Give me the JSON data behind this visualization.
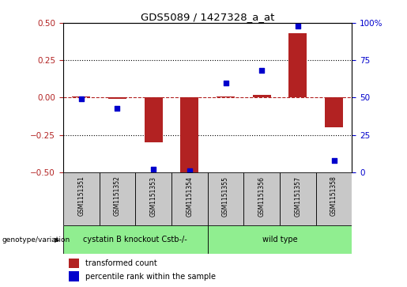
{
  "title": "GDS5089 / 1427328_a_at",
  "samples": [
    "GSM1151351",
    "GSM1151352",
    "GSM1151353",
    "GSM1151354",
    "GSM1151355",
    "GSM1151356",
    "GSM1151357",
    "GSM1151358"
  ],
  "transformed_count": [
    0.01,
    -0.01,
    -0.3,
    -0.5,
    0.01,
    0.02,
    0.43,
    -0.2
  ],
  "percentile_rank": [
    49,
    43,
    2,
    1,
    60,
    68,
    98,
    8
  ],
  "groups": [
    {
      "label": "cystatin B knockout Cstb-/-",
      "start": 0,
      "end": 3,
      "color": "#90EE90"
    },
    {
      "label": "wild type",
      "start": 4,
      "end": 7,
      "color": "#90EE90"
    }
  ],
  "group_row_label": "genotype/variation",
  "bar_color": "#B22222",
  "dot_color": "#0000CC",
  "bg_color": "#FFFFFF",
  "sample_bg_color": "#C8C8C8",
  "ylim_left": [
    -0.5,
    0.5
  ],
  "ylim_right": [
    0,
    100
  ],
  "yticks_left": [
    -0.5,
    -0.25,
    0.0,
    0.25,
    0.5
  ],
  "yticks_right": [
    0,
    25,
    50,
    75,
    100
  ],
  "ytick_labels_right": [
    "0",
    "25",
    "50",
    "75",
    "100%"
  ],
  "legend_items": [
    {
      "label": "transformed count",
      "color": "#B22222"
    },
    {
      "label": "percentile rank within the sample",
      "color": "#0000CC"
    }
  ]
}
